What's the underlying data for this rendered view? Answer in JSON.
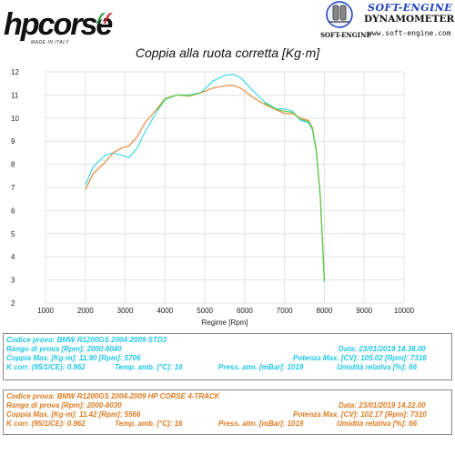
{
  "header": {
    "left_logo": "hpcorse",
    "left_logo_sub": "MADE IN ITALY",
    "right_title": "SOFT-ENGINE",
    "right_subtitle": "DYNAMOMETERS",
    "right_url": "www.soft-engine.com",
    "right_brand": "SOFT-ENGINE"
  },
  "colors": {
    "cyan": "#3fd8e8",
    "orange": "#e8893a",
    "green": "#5fcf4a",
    "grid": "#e3e3e3"
  },
  "chart_data": {
    "type": "line",
    "title": "Coppia alla ruota corretta [Kg·m]",
    "xlabel": "Regime [Rpm]",
    "ylabel": "",
    "xlim": [
      1000,
      10000
    ],
    "ylim": [
      2,
      12
    ],
    "xticks": [
      1000,
      2000,
      3000,
      4000,
      5000,
      6000,
      7000,
      8000,
      9000,
      10000
    ],
    "yticks": [
      2,
      3,
      4,
      5,
      6,
      7,
      8,
      9,
      10,
      11,
      12
    ],
    "grid": true,
    "series": [
      {
        "color": "cyan",
        "x": [
          2000,
          2200,
          2500,
          2700,
          2900,
          3100,
          3300,
          3500,
          3800,
          4000,
          4300,
          4600,
          4900,
          5200,
          5500,
          5700,
          5900,
          6200,
          6500,
          6800,
          7000,
          7200,
          7400,
          7600,
          7700,
          7800,
          7900,
          8000
        ],
        "y": [
          7.1,
          7.9,
          8.4,
          8.5,
          8.4,
          8.3,
          8.7,
          9.4,
          10.3,
          10.8,
          11.0,
          11.0,
          11.1,
          11.6,
          11.85,
          11.9,
          11.75,
          11.2,
          10.7,
          10.4,
          10.4,
          10.3,
          9.9,
          9.8,
          9.5,
          8.5,
          6.5,
          2.9
        ]
      },
      {
        "color": "orange",
        "x": [
          2000,
          2200,
          2500,
          2700,
          2900,
          3100,
          3300,
          3500,
          3800,
          4000,
          4300,
          4600,
          4900,
          5200,
          5500,
          5700,
          5900,
          6200,
          6500,
          6800,
          7000,
          7200,
          7400,
          7600,
          7700,
          7800,
          7900,
          8000
        ],
        "y": [
          6.9,
          7.6,
          8.1,
          8.5,
          8.7,
          8.8,
          9.2,
          9.8,
          10.4,
          10.85,
          11.0,
          10.95,
          11.1,
          11.3,
          11.4,
          11.42,
          11.3,
          10.9,
          10.6,
          10.35,
          10.2,
          10.2,
          10.0,
          9.9,
          9.6,
          8.6,
          6.6,
          3.0
        ]
      }
    ]
  },
  "test_cyan": {
    "codice": "Codice prova: BMW R1200GS 2004-2009 STD3",
    "rango": "Rango di prova [Rpm]: 2000-8040",
    "data": "Data: 23/01/2019   14.38.00",
    "coppia": "Coppia Max. [Kg·m]: 11.90  [Rpm]: 5706",
    "potenza": "Potenza Max. [CV]: 105.02   [Rpm]: 7316",
    "kcorr": "K corr. (95/1/CE): 0.962",
    "temp": "Temp. amb. [°C]: 16",
    "press": "Press. atm. [mBar]: 1019",
    "umid": "Umidità relativa [%]: 66"
  },
  "test_orange": {
    "codice": "Codice prova: BMW R1200GS   2004-2009 HP CORSE 4-TRACK",
    "rango": "Rango di prova [Rpm]: 2000-8030",
    "data": "Data: 23/01/2019   14.22.00",
    "coppia": "Coppia Max. [Kg·m]: 11.42  [Rpm]: 5566",
    "potenza": "Potenza Max. [CV]: 102.17   [Rpm]: 7310",
    "kcorr": "K corr. (95/1/CE): 0.962",
    "temp": "Temp. amb. [°C]: 16",
    "press": "Press. atm. [mBar]: 1019",
    "umid": "Umidità relativa [%]: 66"
  }
}
